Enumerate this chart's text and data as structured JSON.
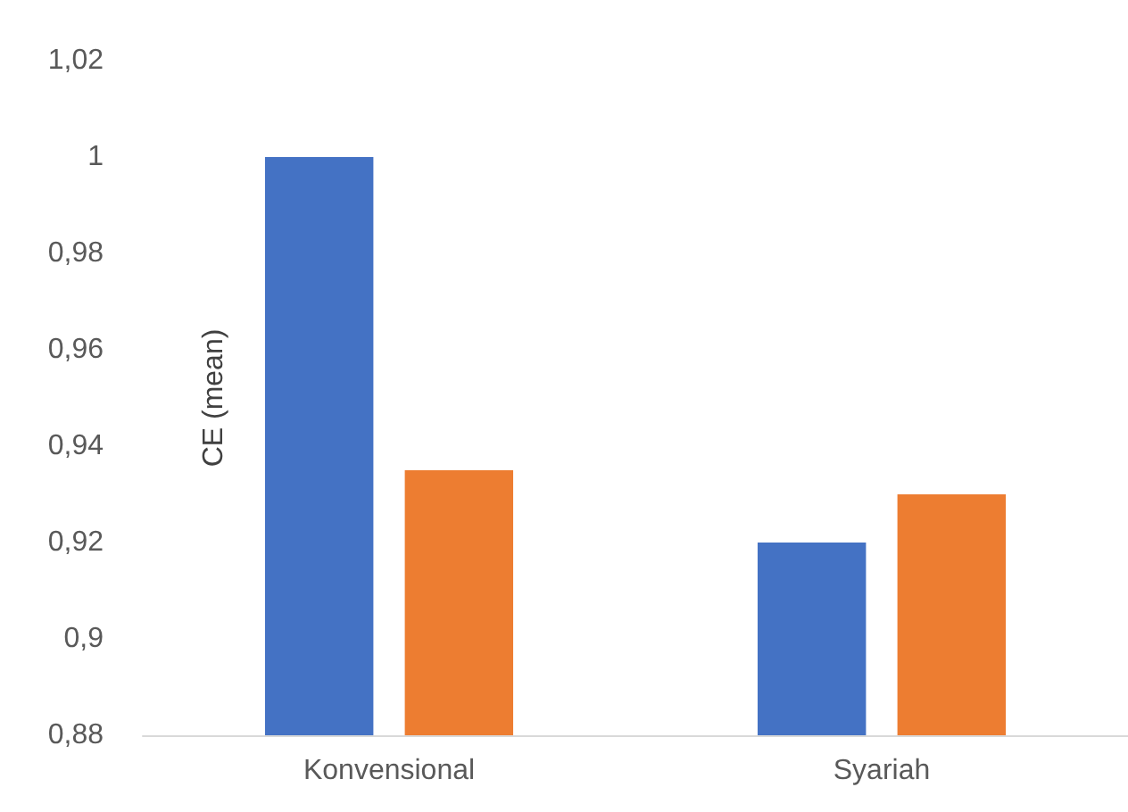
{
  "chart_data": {
    "type": "bar",
    "ylabel": "CE (mean)",
    "categories": [
      "Konvensional",
      "Syariah"
    ],
    "series": [
      {
        "color": "#4472c4",
        "values": [
          1.0,
          0.92
        ]
      },
      {
        "color": "#ed7d31",
        "values": [
          0.935,
          0.93
        ]
      }
    ],
    "ylim": [
      0.88,
      1.02
    ],
    "yticks": [
      {
        "value": 0.88,
        "label": "0,88"
      },
      {
        "value": 0.9,
        "label": "0,9"
      },
      {
        "value": 0.92,
        "label": "0,92"
      },
      {
        "value": 0.94,
        "label": "0,94"
      },
      {
        "value": 0.96,
        "label": "0,96"
      },
      {
        "value": 0.98,
        "label": "0,98"
      },
      1,
      {
        "value": 1.02,
        "label": "1,02"
      }
    ],
    "grid": false
  }
}
